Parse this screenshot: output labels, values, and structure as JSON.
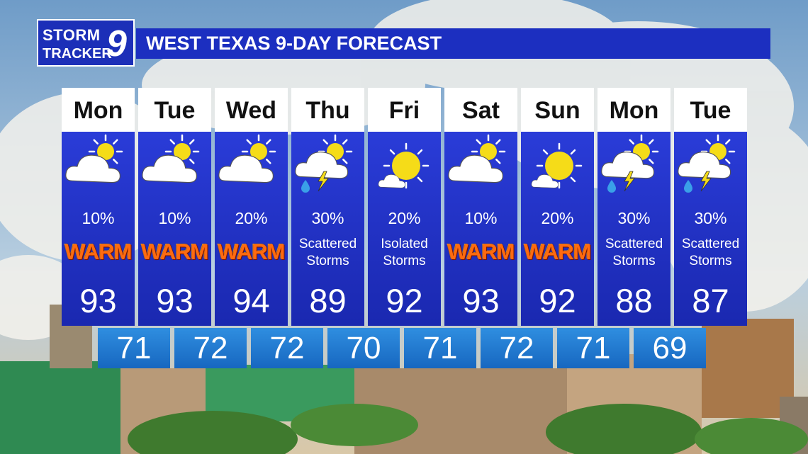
{
  "header": {
    "logo": {
      "line1": "STORM",
      "line2": "TRACKER",
      "number": "9"
    },
    "title": "WEST TEXAS 9-DAY FORECAST"
  },
  "days": [
    {
      "day": "Mon",
      "precip": "10%",
      "condition": "WARM",
      "high": 93
    },
    {
      "day": "Tue",
      "precip": "10%",
      "condition": "WARM",
      "high": 93
    },
    {
      "day": "Wed",
      "precip": "20%",
      "condition": "WARM",
      "high": 94
    },
    {
      "day": "Thu",
      "precip": "30%",
      "condition": "Scattered Storms",
      "high": 89
    },
    {
      "day": "Fri",
      "precip": "20%",
      "condition": "Isolated Storms",
      "high": 92
    },
    {
      "day": "Sat",
      "precip": "10%",
      "condition": "WARM",
      "high": 93
    },
    {
      "day": "Sun",
      "precip": "20%",
      "condition": "WARM",
      "high": 92
    },
    {
      "day": "Mon",
      "precip": "30%",
      "condition": "Scattered Storms",
      "high": 88
    },
    {
      "day": "Tue",
      "precip": "30%",
      "condition": "Scattered Storms",
      "high": 87
    }
  ],
  "lows": [
    71,
    72,
    72,
    70,
    71,
    72,
    71,
    69
  ]
}
